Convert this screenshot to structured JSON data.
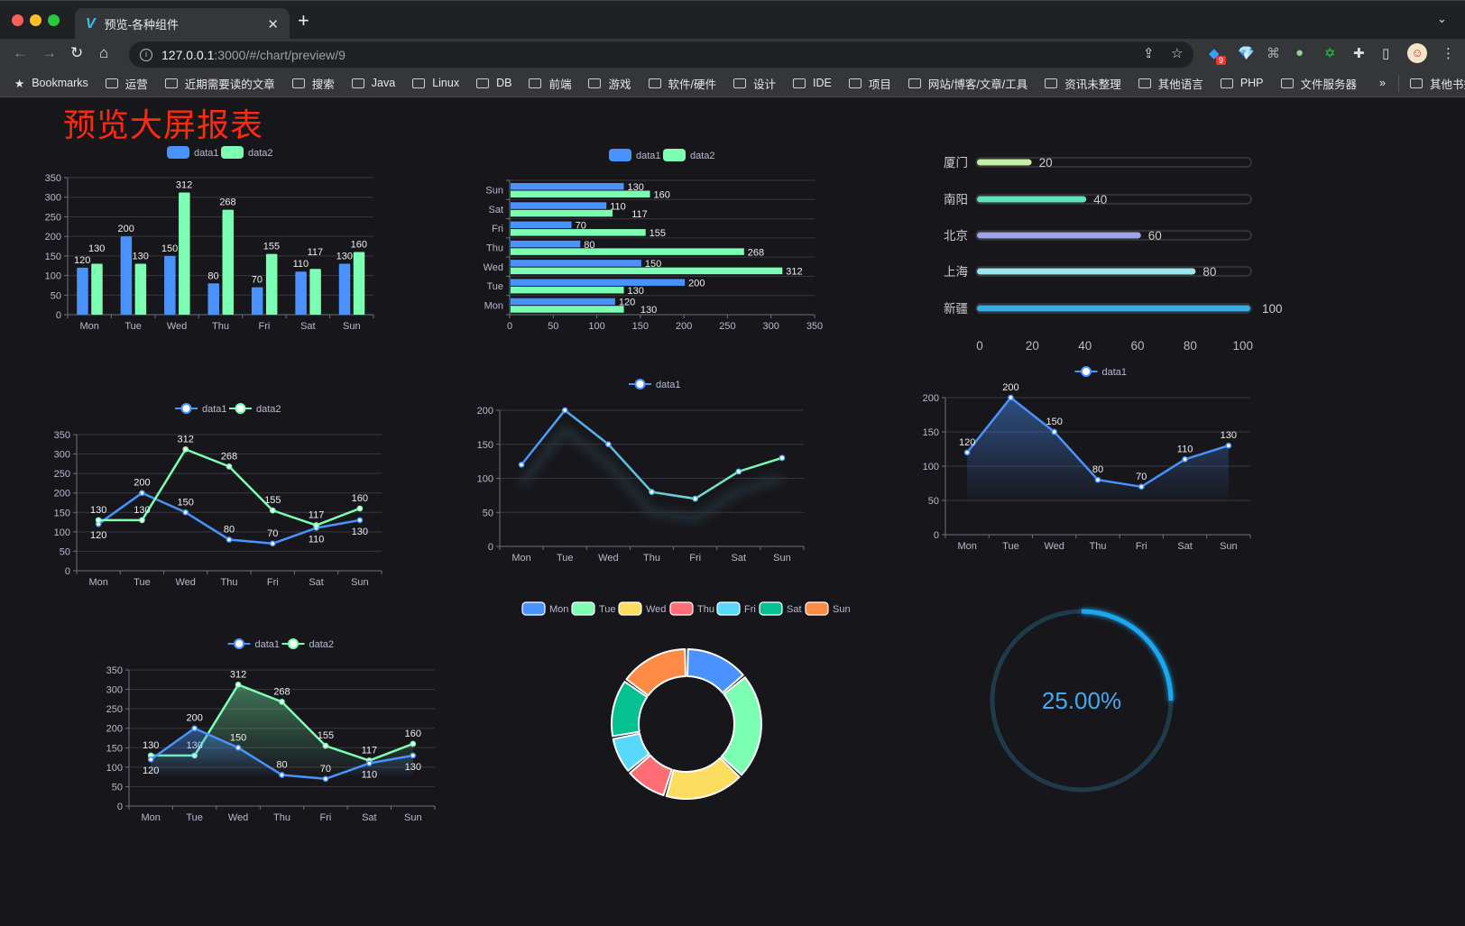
{
  "browser": {
    "tab_title": "预览-各种组件",
    "url_host": "127.0.0.1",
    "url_rest": ":3000/#/chart/preview/9",
    "extension_badge": "9",
    "bookmarks_label": "Bookmarks",
    "bookmark_folders": [
      "运营",
      "近期需要读的文章",
      "搜索",
      "Java",
      "Linux",
      "DB",
      "前端",
      "游戏",
      "软件/硬件",
      "设计",
      "IDE",
      "项目",
      "网站/博客/文章/工具",
      "资讯未整理",
      "其他语言",
      "PHP",
      "文件服务器"
    ],
    "overflow": "»",
    "other_bookmarks": "其他书签"
  },
  "page": {
    "title": "预览大屏报表"
  },
  "colors": {
    "data1": "#4992ff",
    "data2": "#7cffb2",
    "title": "#ff2a0f",
    "background": "#17171b"
  },
  "chart_data": [
    {
      "type": "bar",
      "categories": [
        "Mon",
        "Tue",
        "Wed",
        "Thu",
        "Fri",
        "Sat",
        "Sun"
      ],
      "series": [
        {
          "name": "data1",
          "values": [
            120,
            200,
            150,
            80,
            70,
            110,
            130
          ]
        },
        {
          "name": "data2",
          "values": [
            130,
            130,
            312,
            268,
            155,
            117,
            160
          ]
        }
      ],
      "ylim": [
        0,
        350
      ],
      "yticks": [
        "0",
        "50",
        "100",
        "150",
        "200",
        "250",
        "300",
        "350"
      ],
      "legend": "top-center",
      "data_labels": true,
      "grid": true
    },
    {
      "type": "bar",
      "orientation": "horizontal",
      "categories": [
        "Mon",
        "Tue",
        "Wed",
        "Thu",
        "Fri",
        "Sat",
        "Sun"
      ],
      "series": [
        {
          "name": "data1",
          "values": [
            120,
            200,
            150,
            80,
            70,
            110,
            130
          ]
        },
        {
          "name": "data2",
          "values": [
            130,
            130,
            312,
            268,
            155,
            117,
            160
          ]
        }
      ],
      "xlim": [
        0,
        350
      ],
      "xticks": [
        "0",
        "50",
        "100",
        "150",
        "200",
        "250",
        "300",
        "350"
      ],
      "legend": "top-center",
      "data_labels": true,
      "grid": true
    },
    {
      "type": "bar",
      "orientation": "horizontal",
      "style": "progress",
      "categories": [
        "厦门",
        "南阳",
        "北京",
        "上海",
        "新疆"
      ],
      "values": [
        20,
        40,
        60,
        80,
        100
      ],
      "colors": [
        "#c5eda3",
        "#5fe3b5",
        "#9ea3ec",
        "#98e6ec",
        "#39aee5"
      ],
      "xlim": [
        0,
        100
      ],
      "xticks": [
        "0",
        "20",
        "40",
        "60",
        "80",
        "100"
      ]
    },
    {
      "type": "line",
      "categories": [
        "Mon",
        "Tue",
        "Wed",
        "Thu",
        "Fri",
        "Sat",
        "Sun"
      ],
      "series": [
        {
          "name": "data1",
          "values": [
            120,
            200,
            150,
            80,
            70,
            110,
            130
          ]
        },
        {
          "name": "data2",
          "values": [
            130,
            130,
            312,
            268,
            155,
            117,
            160
          ]
        }
      ],
      "ylim": [
        0,
        350
      ],
      "yticks": [
        "0",
        "50",
        "100",
        "150",
        "200",
        "250",
        "300",
        "350"
      ],
      "legend": "top-center",
      "data_labels": true,
      "grid": true
    },
    {
      "type": "line",
      "categories": [
        "Mon",
        "Tue",
        "Wed",
        "Thu",
        "Fri",
        "Sat",
        "Sun"
      ],
      "series": [
        {
          "name": "data1",
          "values": [
            120,
            200,
            150,
            80,
            70,
            110,
            130
          ]
        }
      ],
      "ylim": [
        0,
        200
      ],
      "yticks": [
        "0",
        "50",
        "100",
        "150",
        "200"
      ],
      "legend": "top-center",
      "gradient_line": true,
      "shadow": true,
      "grid": true
    },
    {
      "type": "area",
      "categories": [
        "Mon",
        "Tue",
        "Wed",
        "Thu",
        "Fri",
        "Sat",
        "Sun"
      ],
      "series": [
        {
          "name": "data1",
          "values": [
            120,
            200,
            150,
            80,
            70,
            110,
            130
          ]
        }
      ],
      "ylim": [
        0,
        200
      ],
      "yticks": [
        "0",
        "50",
        "100",
        "150",
        "200"
      ],
      "legend": "top-center",
      "data_labels": true,
      "grid": true
    },
    {
      "type": "area",
      "categories": [
        "Mon",
        "Tue",
        "Wed",
        "Thu",
        "Fri",
        "Sat",
        "Sun"
      ],
      "series": [
        {
          "name": "data1",
          "values": [
            120,
            200,
            150,
            80,
            70,
            110,
            130
          ]
        },
        {
          "name": "data2",
          "values": [
            130,
            130,
            312,
            268,
            155,
            117,
            160
          ]
        }
      ],
      "ylim": [
        0,
        350
      ],
      "yticks": [
        "0",
        "50",
        "100",
        "150",
        "200",
        "250",
        "300",
        "350"
      ],
      "legend": "top-center",
      "data_labels": true,
      "grid": true
    },
    {
      "type": "pie",
      "style": "donut",
      "categories": [
        "Mon",
        "Tue",
        "Wed",
        "Thu",
        "Fri",
        "Sat",
        "Sun"
      ],
      "values": [
        120,
        200,
        150,
        80,
        70,
        110,
        130
      ],
      "colors": [
        "#4992ff",
        "#7cffb2",
        "#fddd60",
        "#ff6e76",
        "#58d9f9",
        "#05c091",
        "#ff8a45"
      ],
      "legend": "top-center"
    },
    {
      "type": "gauge",
      "style": "progress-ring",
      "value": 25,
      "label": "25.00%",
      "color": "#1ea7f2"
    }
  ]
}
